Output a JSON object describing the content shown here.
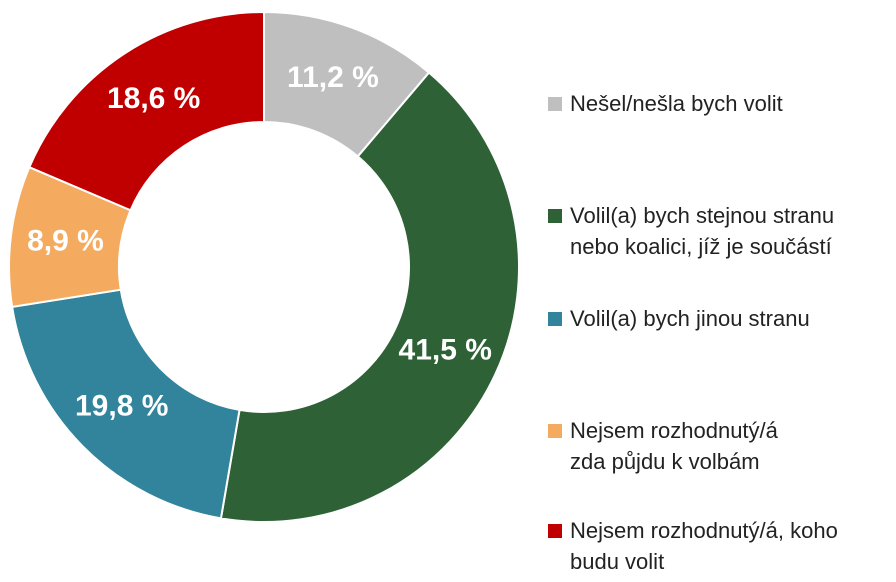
{
  "chart_data": {
    "type": "donut",
    "categories": [
      "Nešel/nešla bych volit",
      "Volil(a) bych stejnou stranu nebo koalici, jíž je součástí",
      "Volil(a) bych jinou stranu",
      "Nejsem rozhodnutý/á zda půjdu k volbám",
      "Nejsem rozhodnutý/á, koho budu volit"
    ],
    "values": [
      11.2,
      41.5,
      19.8,
      8.9,
      18.6
    ],
    "value_labels": [
      "11,2 %",
      "41,5 %",
      "19,8 %",
      "8,9 %",
      "18,6 %"
    ],
    "colors": [
      "#bfbfbf",
      "#2e6236",
      "#31849b",
      "#f4ab5f",
      "#c00000"
    ],
    "legend": "right"
  }
}
